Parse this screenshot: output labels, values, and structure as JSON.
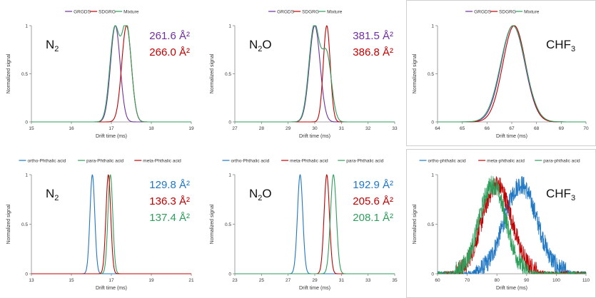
{
  "chart_data": [
    {
      "type": "line",
      "legend": [
        "GRGDS",
        "SDGRG",
        "Mixture"
      ],
      "colors": [
        "#7030a0",
        "#c00000",
        "#2e9e5b"
      ],
      "gas": {
        "base": "N",
        "sub": "2",
        "tail": ""
      },
      "annotations": [
        {
          "text": "261.6 Å²",
          "color": "#7030a0"
        },
        {
          "text": "266.0 Å²",
          "color": "#c00000"
        }
      ],
      "xlabel": "Drift time (ms)",
      "ylabel": "Normalized signal",
      "xlim": [
        15,
        19
      ],
      "xticks": [
        "15",
        "16",
        "17",
        "18",
        "19"
      ],
      "ylim": [
        0,
        1
      ],
      "yticks": [
        "0",
        "0.5",
        "1"
      ],
      "series": [
        {
          "name": "GRGDS",
          "shape": "gauss",
          "center": 17.1,
          "sigma": 0.12,
          "amp": 1.0
        },
        {
          "name": "SDGRG",
          "shape": "gauss",
          "center": 17.38,
          "sigma": 0.12,
          "amp": 1.0
        },
        {
          "name": "Mixture",
          "shape": "sum",
          "parts": [
            [
              17.08,
              0.12,
              0.95
            ],
            [
              17.38,
              0.12,
              1.0
            ]
          ]
        }
      ]
    },
    {
      "type": "line",
      "legend": [
        "GRGDS",
        "SDGRG",
        "Mixture"
      ],
      "colors": [
        "#7030a0",
        "#c00000",
        "#2e9e5b"
      ],
      "gas": {
        "base": "N",
        "sub": "2",
        "tail": "O"
      },
      "annotations": [
        {
          "text": "381.5 Å²",
          "color": "#7030a0"
        },
        {
          "text": "386.8 Å²",
          "color": "#c00000"
        }
      ],
      "xlabel": "Drift time (ms)",
      "ylabel": "Normalized signal",
      "xlim": [
        27,
        33
      ],
      "xticks": [
        "27",
        "28",
        "29",
        "30",
        "31",
        "32",
        "33"
      ],
      "ylim": [
        0,
        1
      ],
      "yticks": [
        "0",
        "0.5",
        "1"
      ],
      "series": [
        {
          "name": "GRGDS",
          "shape": "gauss",
          "center": 30.0,
          "sigma": 0.2,
          "amp": 1.0
        },
        {
          "name": "SDGRG",
          "shape": "gauss",
          "center": 30.45,
          "sigma": 0.13,
          "amp": 1.0
        },
        {
          "name": "Mixture",
          "shape": "sum",
          "parts": [
            [
              29.98,
              0.2,
              1.0
            ],
            [
              30.45,
              0.18,
              0.68
            ]
          ]
        }
      ]
    },
    {
      "type": "line",
      "legend": [
        "GRGDS",
        "SDGRG",
        "Mixture"
      ],
      "colors": [
        "#7030a0",
        "#c00000",
        "#2e9e5b"
      ],
      "gas": {
        "base": "CHF",
        "sub": "3",
        "tail": ""
      },
      "annotations": [],
      "xlabel": "Drift time (ms)",
      "ylabel": "Normalized signal",
      "xlim": [
        64,
        70
      ],
      "xticks": [
        "64",
        "65",
        "66",
        "67",
        "68",
        "69",
        "70"
      ],
      "ylim": [
        0,
        1
      ],
      "yticks": [
        "0",
        "0.5",
        "1"
      ],
      "series": [
        {
          "name": "GRGDS",
          "shape": "gauss",
          "center": 67.05,
          "sigma": 0.48,
          "amp": 1.0
        },
        {
          "name": "SDGRG",
          "shape": "gauss",
          "center": 67.1,
          "sigma": 0.46,
          "amp": 1.0
        },
        {
          "name": "Mixture",
          "shape": "gauss",
          "center": 67.05,
          "sigma": 0.5,
          "amp": 1.0
        }
      ]
    },
    {
      "type": "line",
      "legend": [
        "ortho-Phthalic acid",
        "para-Phthalic acid",
        "meta-Phthalic acid"
      ],
      "colors": [
        "#1f77c4",
        "#2e9e5b",
        "#c00000"
      ],
      "gas": {
        "base": "N",
        "sub": "2",
        "tail": ""
      },
      "annotations": [
        {
          "text": "129.8 Å²",
          "color": "#1f77c4"
        },
        {
          "text": "136.3 Å²",
          "color": "#c00000"
        },
        {
          "text": "137.4 Å²",
          "color": "#2e9e5b"
        }
      ],
      "xlabel": "Drift time (ms)",
      "ylabel": "Normalized signal",
      "xlim": [
        13,
        21
      ],
      "xticks": [
        "13",
        "15",
        "17",
        "19",
        "21"
      ],
      "ylim": [
        0,
        1
      ],
      "yticks": [
        "0",
        "0.5",
        "1"
      ],
      "series": [
        {
          "name": "ortho-Phthalic acid",
          "shape": "gauss",
          "center": 16.05,
          "sigma": 0.12,
          "amp": 1.0
        },
        {
          "name": "para-Phthalic acid",
          "shape": "gauss",
          "center": 16.95,
          "sigma": 0.12,
          "amp": 1.0
        },
        {
          "name": "meta-Phthalic acid",
          "shape": "gauss",
          "center": 16.85,
          "sigma": 0.12,
          "amp": 1.0
        }
      ]
    },
    {
      "type": "line",
      "legend": [
        "ortho-Phthalic acid",
        "meta-Phthalic acid",
        "para-Phthalic acid"
      ],
      "colors": [
        "#1f77c4",
        "#c00000",
        "#2e9e5b"
      ],
      "gas": {
        "base": "N",
        "sub": "2",
        "tail": "O"
      },
      "annotations": [
        {
          "text": "192.9 Å²",
          "color": "#1f77c4"
        },
        {
          "text": "205.6 Å²",
          "color": "#c00000"
        },
        {
          "text": "208.1 Å²",
          "color": "#2e9e5b"
        }
      ],
      "xlabel": "Drift time (ms)",
      "ylabel": "Normalized signal",
      "xlim": [
        23,
        35
      ],
      "xticks": [
        "23",
        "25",
        "27",
        "29",
        "31",
        "33",
        "35"
      ],
      "ylim": [
        0,
        1
      ],
      "yticks": [
        "0",
        "0.5",
        "1"
      ],
      "series": [
        {
          "name": "ortho-Phthalic acid",
          "shape": "gauss",
          "center": 27.9,
          "sigma": 0.2,
          "amp": 1.0
        },
        {
          "name": "meta-Phthalic acid",
          "shape": "gauss",
          "center": 29.9,
          "sigma": 0.2,
          "amp": 1.0
        },
        {
          "name": "para-Phthalic acid",
          "shape": "gauss",
          "center": 30.4,
          "sigma": 0.22,
          "amp": 1.0
        }
      ]
    },
    {
      "type": "line",
      "legend": [
        "ortho-phthalic acid",
        "meta-phthalic acid",
        "para-phthalic acid"
      ],
      "colors": [
        "#1f77c4",
        "#c00000",
        "#2e9e5b"
      ],
      "gas": {
        "base": "CHF",
        "sub": "3",
        "tail": ""
      },
      "annotations": [],
      "xlabel": "Drift time (ms)",
      "ylabel": "Normalized signal",
      "xlim": [
        60,
        110
      ],
      "xticks": [
        "60",
        "70",
        "80",
        "90",
        "100",
        "110"
      ],
      "ylim": [
        0,
        1
      ],
      "yticks": [
        "0",
        "0.5",
        "1"
      ],
      "series": [
        {
          "name": "ortho-phthalic acid",
          "shape": "noisy",
          "center": 88,
          "sigma": 5.5,
          "amp": 0.9,
          "noise": 0.1
        },
        {
          "name": "meta-phthalic acid",
          "shape": "noisy",
          "center": 80,
          "sigma": 5.0,
          "amp": 0.9,
          "noise": 0.1
        },
        {
          "name": "para-phthalic acid",
          "shape": "noisy",
          "center": 78.5,
          "sigma": 4.5,
          "amp": 0.9,
          "noise": 0.1
        }
      ]
    }
  ]
}
